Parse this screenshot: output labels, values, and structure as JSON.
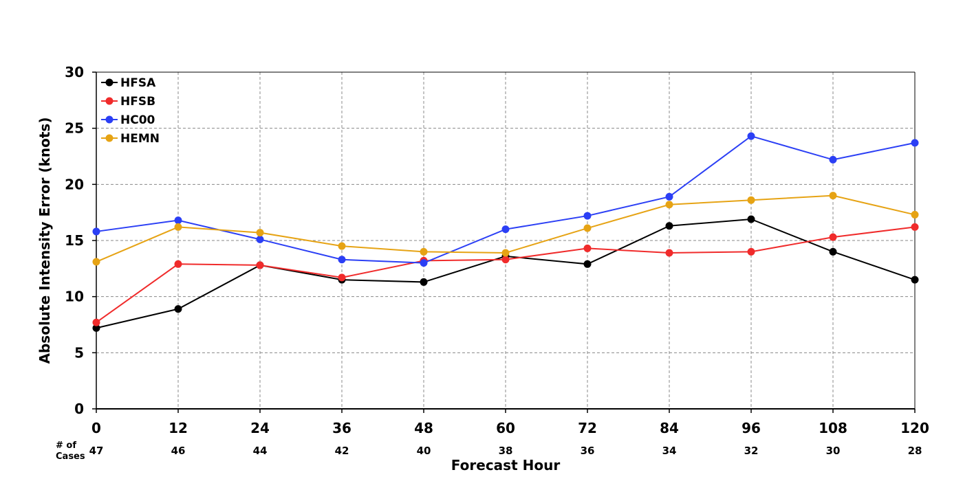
{
  "chart_data": {
    "type": "line",
    "title": "",
    "xlabel": "Forecast Hour",
    "ylabel": "Absolute Intensity Error (knots)",
    "x": [
      0,
      12,
      24,
      36,
      48,
      60,
      72,
      84,
      96,
      108,
      120
    ],
    "xlim": [
      0,
      120
    ],
    "ylim": [
      0,
      30
    ],
    "yticks": [
      0,
      5,
      10,
      15,
      20,
      25,
      30
    ],
    "grid": true,
    "legend_position": "top-left",
    "cases_label_line1": "# of",
    "cases_label_line2": "Cases",
    "cases": [
      47,
      46,
      44,
      42,
      40,
      38,
      36,
      34,
      32,
      30,
      28
    ],
    "series": [
      {
        "name": "HFSA",
        "color": "#000000",
        "values": [
          7.2,
          8.9,
          12.8,
          11.5,
          11.3,
          13.6,
          12.9,
          16.3,
          16.9,
          14.0,
          11.5
        ]
      },
      {
        "name": "HFSB",
        "color": "#f02b2b",
        "values": [
          7.7,
          12.9,
          12.8,
          11.7,
          13.2,
          13.3,
          14.3,
          13.9,
          14.0,
          15.3,
          16.2
        ]
      },
      {
        "name": "HC00",
        "color": "#2b3ff5",
        "values": [
          15.8,
          16.8,
          15.1,
          13.3,
          13.0,
          16.0,
          17.2,
          18.9,
          24.3,
          22.2,
          23.7
        ]
      },
      {
        "name": "HEMN",
        "color": "#e6a314",
        "values": [
          13.1,
          16.2,
          15.7,
          14.5,
          14.0,
          13.9,
          16.1,
          18.2,
          18.6,
          19.0,
          17.3
        ]
      }
    ]
  }
}
